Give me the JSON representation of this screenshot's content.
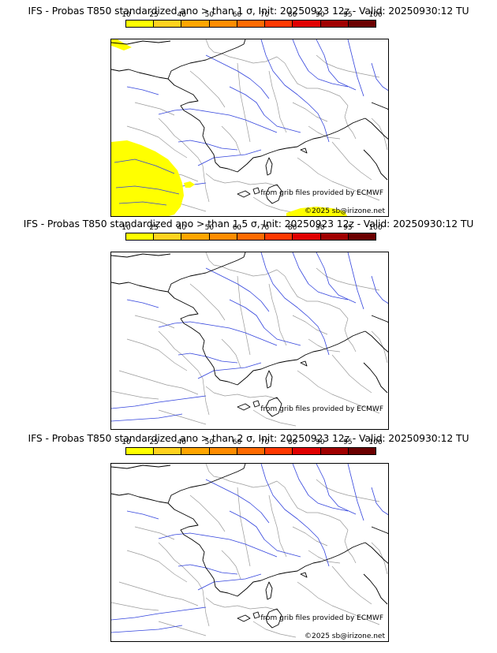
{
  "panels": [
    {
      "title": "IFS - Probas T850  standardized ano > than 1 σ, Init: 20250923 12z - Valid: 20250930:12 TU",
      "has_yellow": true
    },
    {
      "title": "IFS - Probas T850  standardized ano > than 1.5 σ, Init: 20250923 12z - Valid: 20250930:12 TU",
      "has_yellow": false
    },
    {
      "title": "IFS - Probas T850  standardized ano > than 2 σ, Init: 20250923 12z - Valid: 20250930:12 TU",
      "has_yellow": false
    }
  ],
  "colorbar": {
    "ticks": [
      "10",
      "25",
      "40",
      "50",
      "60",
      "70",
      "80",
      "90",
      "95",
      "100"
    ],
    "colors": [
      "#ffff00",
      "#ffd21e",
      "#ffa500",
      "#ff8c00",
      "#ff6a00",
      "#ff3800",
      "#e00000",
      "#a00000",
      "#6b0000"
    ]
  },
  "credits": {
    "source": "from grib files provided by ECMWF",
    "copyright": "©2025 sb@irizone.net"
  },
  "map_colors": {
    "coast": "#000000",
    "rivers": "#3344dd",
    "borders": "#9a9a9a",
    "probability_fill": "#ffff00"
  }
}
